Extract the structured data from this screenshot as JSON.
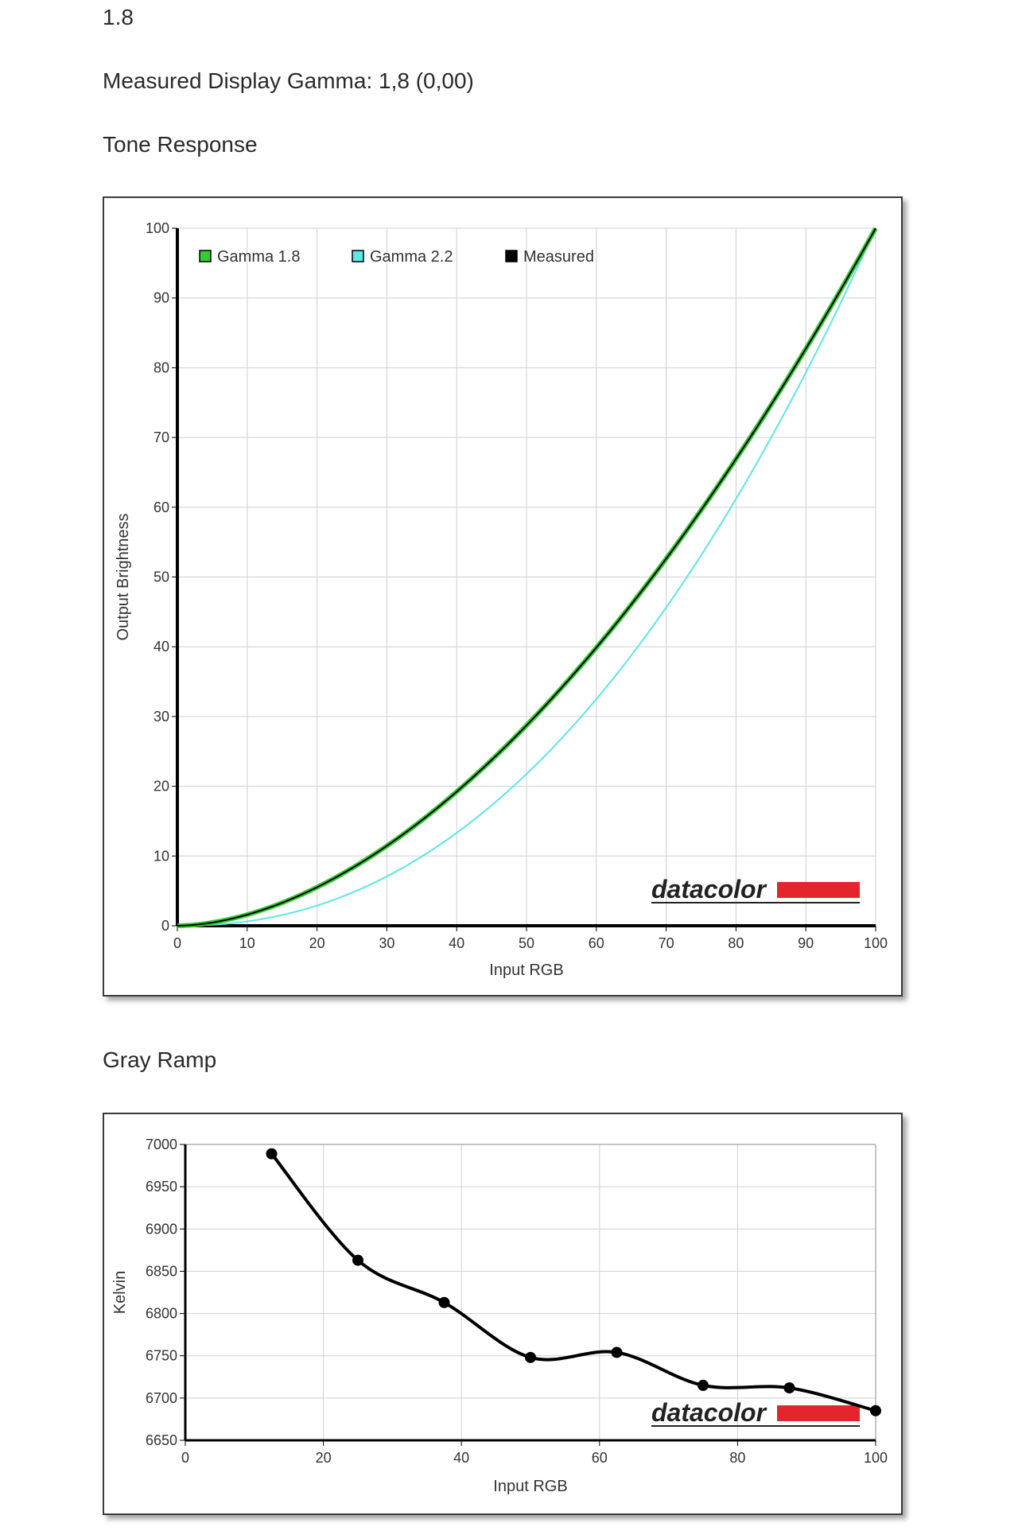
{
  "header": {
    "gamma_value": "1.8",
    "measured_label": "Measured Display Gamma: 1,8 (0,00)",
    "tone_title": "Tone Response",
    "gray_title": "Gray Ramp"
  },
  "brand": {
    "logo_text": "datacolor",
    "logo_color": "#e3262e"
  },
  "chart_data": [
    {
      "type": "line",
      "title": "Tone Response",
      "xlabel": "Input RGB",
      "ylabel": "Output Brightness",
      "xlim": [
        0,
        100
      ],
      "ylim": [
        0,
        100
      ],
      "xticks": [
        0,
        10,
        20,
        30,
        40,
        50,
        60,
        70,
        80,
        90,
        100
      ],
      "yticks": [
        0,
        10,
        20,
        30,
        40,
        50,
        60,
        70,
        80,
        90,
        100
      ],
      "grid": true,
      "legend_position": "top-left",
      "series": [
        {
          "name": "Gamma 1.8",
          "gamma": 1.8,
          "color": "#33cc33",
          "role": "reference"
        },
        {
          "name": "Gamma 2.2",
          "gamma": 2.2,
          "color": "#5ce6e6",
          "role": "reference"
        },
        {
          "name": "Measured",
          "gamma": 1.8,
          "color": "#000000",
          "role": "measured"
        }
      ]
    },
    {
      "type": "line",
      "title": "Gray Ramp",
      "xlabel": "Input RGB",
      "ylabel": "Kelvin",
      "xlim": [
        0,
        100
      ],
      "ylim": [
        6650,
        7000
      ],
      "xticks": [
        0,
        20,
        40,
        60,
        80,
        100
      ],
      "yticks": [
        6650,
        6700,
        6750,
        6800,
        6850,
        6900,
        6950,
        7000
      ],
      "grid": true,
      "series": [
        {
          "color": "#000000",
          "x": [
            12.5,
            25,
            37.5,
            50,
            62.5,
            75,
            87.5,
            100
          ],
          "y": [
            6989,
            6863,
            6813,
            6748,
            6754,
            6715,
            6712,
            6685
          ]
        }
      ]
    }
  ]
}
